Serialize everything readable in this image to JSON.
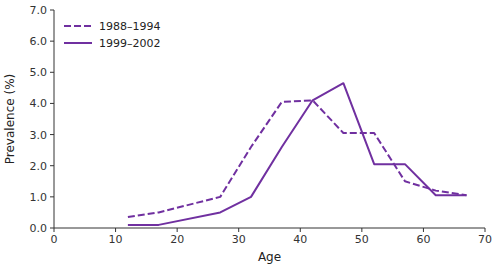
{
  "chart_data": {
    "type": "line",
    "x": [
      12,
      17,
      27,
      32,
      37,
      42,
      47,
      52,
      57,
      62,
      67
    ],
    "series": [
      {
        "name": "1988–1994",
        "color": "#7030a0",
        "line_style": "dashed",
        "values": [
          0.35,
          0.5,
          1.0,
          2.6,
          4.05,
          4.1,
          3.05,
          3.05,
          1.5,
          1.2,
          1.05
        ]
      },
      {
        "name": "1999–2002",
        "color": "#7030a0",
        "line_style": "solid",
        "values": [
          0.1,
          0.1,
          0.5,
          1.0,
          2.6,
          4.1,
          4.65,
          2.05,
          2.05,
          1.05,
          1.05
        ]
      }
    ],
    "xlim": [
      0,
      70
    ],
    "ylim": [
      0.0,
      7.0
    ],
    "xticks": [
      0,
      10,
      20,
      30,
      40,
      50,
      60,
      70
    ],
    "yticks": [
      {
        "value": 0.0,
        "label": "0.0"
      },
      {
        "value": 1.0,
        "label": "1.0"
      },
      {
        "value": 2.0,
        "label": "2.0"
      },
      {
        "value": 3.0,
        "label": "3.0"
      },
      {
        "value": 4.0,
        "label": "4.0"
      },
      {
        "value": 5.0,
        "label": "5.0"
      },
      {
        "value": 6.0,
        "label": "6.0"
      },
      {
        "value": 7.0,
        "label": "7.0"
      }
    ],
    "xlabel": "Age",
    "ylabel": "Prevalence (%)",
    "legend": "upper left",
    "grid": false
  }
}
